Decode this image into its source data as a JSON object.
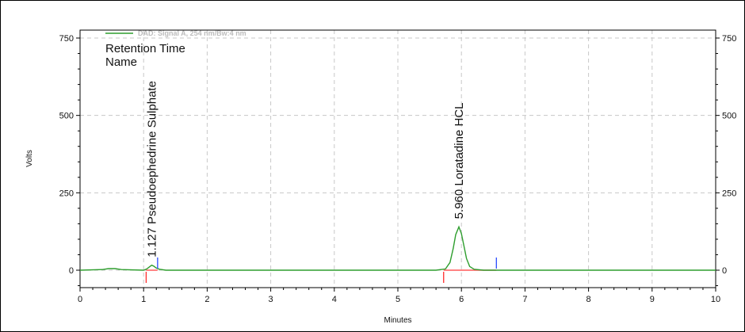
{
  "chart_data": {
    "type": "line",
    "title": "",
    "xlabel": "Minutes",
    "ylabel": "Volts",
    "xlim": [
      0,
      10
    ],
    "ylim": [
      -50,
      780
    ],
    "x_ticks": [
      0,
      1,
      2,
      3,
      4,
      5,
      6,
      7,
      8,
      9,
      10
    ],
    "y_ticks": [
      0,
      250,
      500,
      750
    ],
    "grid": true,
    "legend": {
      "placement": "top-left",
      "entries": [
        {
          "label": "DAD: Signal A, 254 nm/Bw:4 nm",
          "color": "#2e9e2e"
        }
      ]
    },
    "peak_table_header": [
      "Retention Time",
      "Name"
    ],
    "series": [
      {
        "name": "DAD: Signal A, 254 nm/Bw:4 nm",
        "color": "#2e9e2e",
        "x": [
          0,
          0.35,
          0.45,
          0.55,
          0.65,
          1.0,
          1.05,
          1.1,
          1.127,
          1.16,
          1.2,
          1.25,
          1.35,
          5.6,
          5.75,
          5.82,
          5.87,
          5.91,
          5.96,
          6.0,
          6.04,
          6.08,
          6.13,
          6.2,
          6.35,
          10
        ],
        "y": [
          0,
          2,
          5,
          5,
          2,
          0,
          4,
          12,
          16,
          13,
          7,
          3,
          0,
          0,
          4,
          25,
          70,
          115,
          140,
          118,
          78,
          38,
          12,
          3,
          0,
          0
        ]
      }
    ],
    "peaks": [
      {
        "retention_time": "1.127",
        "name": "Pseudoephedrine Sulphate",
        "x": 1.127,
        "y": 16,
        "start": 1.04,
        "end": 1.22
      },
      {
        "retention_time": "5.960",
        "name": "Loratadine HCL",
        "x": 5.96,
        "y": 140,
        "start": 5.72,
        "end": 6.55
      }
    ],
    "baseline_color": "#ff5a5a",
    "peak_start_color": "#ff2a2a",
    "peak_end_color": "#2a4bff"
  }
}
